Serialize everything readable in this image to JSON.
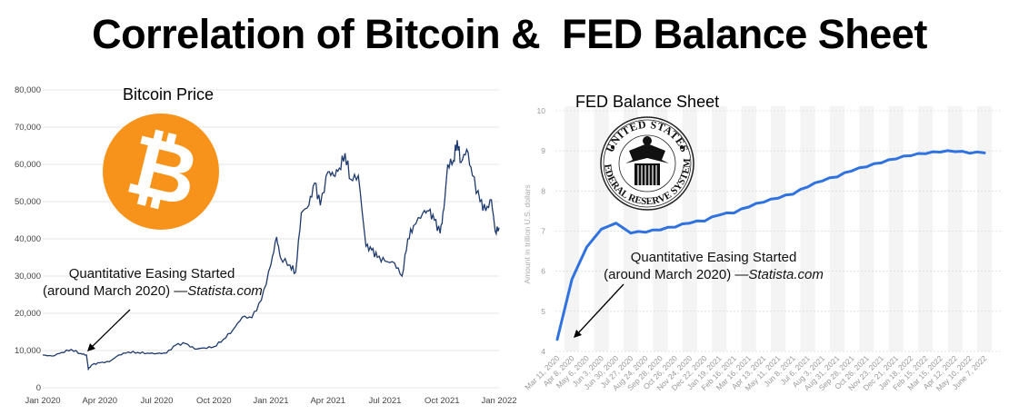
{
  "title": "Correlation of Bitcoin &  FED Balance Sheet",
  "logos": {
    "bitcoin_symbol": "₿",
    "fed_seal_top": "UNITED STATES",
    "fed_seal_bottom": "FEDERAL RESERVE SYSTEM"
  },
  "colors": {
    "bitcoin_line": "#1f3a6e",
    "fed_line": "#2f72e0",
    "bitcoin_orange": "#f7931a"
  },
  "chart_data": [
    {
      "type": "line",
      "title": "Bitcoin Price",
      "xlabel": "",
      "ylabel": "",
      "xlim": [
        0,
        24
      ],
      "ylim": [
        0,
        80000
      ],
      "x_unit": "months since Jan 2020",
      "x_ticks": [
        {
          "v": 0,
          "label": "Jan 2020"
        },
        {
          "v": 3,
          "label": "Apr 2020"
        },
        {
          "v": 6,
          "label": "Jul 2020"
        },
        {
          "v": 9,
          "label": "Oct 2020"
        },
        {
          "v": 12,
          "label": "Jan 2021"
        },
        {
          "v": 15,
          "label": "Apr 2021"
        },
        {
          "v": 18,
          "label": "Jul 2021"
        },
        {
          "v": 21,
          "label": "Oct 2021"
        },
        {
          "v": 24,
          "label": "Jan 2022"
        }
      ],
      "y_ticks": [
        {
          "v": 0,
          "label": "0"
        },
        {
          "v": 10000,
          "label": "10,000"
        },
        {
          "v": 20000,
          "label": "20,000"
        },
        {
          "v": 30000,
          "label": "30,000"
        },
        {
          "v": 40000,
          "label": "40,000"
        },
        {
          "v": 50000,
          "label": "50,000"
        },
        {
          "v": 60000,
          "label": "60,000"
        },
        {
          "v": 70000,
          "label": "70,000"
        },
        {
          "v": 80000,
          "label": "80,000"
        }
      ],
      "grid": true,
      "x": [
        0,
        0.5,
        1,
        1.5,
        2,
        2.3,
        2.4,
        2.6,
        3,
        3.5,
        4,
        4.5,
        5,
        5.5,
        6,
        6.5,
        7,
        7.5,
        8,
        8.5,
        9,
        9.5,
        10,
        10.5,
        11,
        11.5,
        12,
        12.3,
        12.5,
        13,
        13.3,
        13.6,
        14,
        14.3,
        14.6,
        15,
        15.3,
        15.6,
        15.9,
        16.2,
        16.6,
        17,
        17.3,
        17.6,
        18,
        18.5,
        18.9,
        19.2,
        19.5,
        20,
        20.3,
        20.6,
        20.9,
        21.1,
        21.3,
        21.6,
        21.8,
        22,
        22.3,
        22.6,
        23,
        23.3,
        23.6,
        23.8,
        24
      ],
      "values": [
        8800,
        8500,
        9500,
        10300,
        9200,
        8800,
        5000,
        6200,
        6700,
        7000,
        8800,
        9600,
        9500,
        9300,
        9200,
        9300,
        11500,
        11900,
        10400,
        10700,
        11000,
        13000,
        15500,
        19000,
        18800,
        23500,
        33000,
        40500,
        35000,
        33000,
        31000,
        47000,
        49000,
        55000,
        49000,
        58000,
        57000,
        59000,
        63000,
        56000,
        57000,
        38000,
        37000,
        35000,
        34000,
        33500,
        30000,
        40000,
        43500,
        47000,
        47500,
        45000,
        41500,
        48000,
        60000,
        61000,
        66500,
        60500,
        64000,
        57000,
        50000,
        47500,
        50500,
        42000,
        43000
      ],
      "annotation": {
        "line1": "Quantitative Easing Started",
        "line2_prefix": "(around March 2020) —",
        "line2_source": "Statista.com"
      }
    },
    {
      "type": "line",
      "title": "FED Balance Sheet",
      "ylabel": "Amount in trillion U.S. dollars",
      "ylim": [
        4,
        10
      ],
      "y_ticks": [
        {
          "v": 4,
          "label": "4"
        },
        {
          "v": 5,
          "label": "5"
        },
        {
          "v": 6,
          "label": "6"
        },
        {
          "v": 7,
          "label": "7"
        },
        {
          "v": 8,
          "label": "8"
        },
        {
          "v": 9,
          "label": "9"
        },
        {
          "v": 10,
          "label": "10"
        }
      ],
      "grid": true,
      "categories": [
        "Mar 11, 2020",
        "Apr 8, 2020",
        "May 6, 2020",
        "Jun 3, 2020",
        "Jun 30, 2020",
        "Jul 27, 2020",
        "Aug 24, 2020",
        "Sep 28, 2020",
        "Oct 26, 2020",
        "Nov 24, 2020",
        "Dec 22, 2020",
        "Jan 19, 2021",
        "Feb 16, 2021",
        "Mar 16, 2021",
        "Apr 13, 2021",
        "May 11, 2021",
        "Jun 8, 2021",
        "Jul 6, 2021",
        "Aug 3, 2021",
        "Aug 31, 2021",
        "Sep 28, 2021",
        "Oct 26, 2021",
        "Nov 23, 2021",
        "Dec 21, 2021",
        "Jan 18, 2022",
        "Feb 15, 2022",
        "Mar 15, 2022",
        "Apr 12, 2022",
        "May 10, 2022",
        "June 7, 2022"
      ],
      "values": [
        4.3,
        5.8,
        6.6,
        7.05,
        7.2,
        6.95,
        6.97,
        7.03,
        7.1,
        7.2,
        7.25,
        7.4,
        7.45,
        7.6,
        7.72,
        7.82,
        7.92,
        8.1,
        8.25,
        8.35,
        8.5,
        8.6,
        8.7,
        8.8,
        8.88,
        8.93,
        8.97,
        8.98,
        8.94,
        8.95
      ],
      "annotation": {
        "line1": "Quantitative Easing Started",
        "line2_prefix": "(around March 2020) —",
        "line2_source": "Statista.com"
      }
    }
  ]
}
